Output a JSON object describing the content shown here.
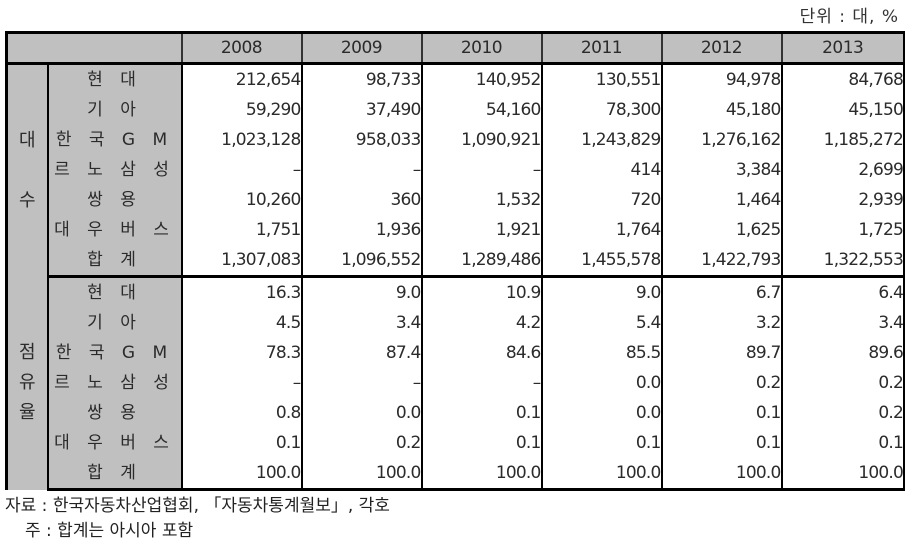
{
  "unit_label": "단위 : 대, %",
  "header": {
    "corner": "",
    "years": [
      "2008",
      "2009",
      "2010",
      "2011",
      "2012",
      "2013"
    ]
  },
  "sections": [
    {
      "group_label": "대 수",
      "group_chars": [
        "대",
        "수"
      ],
      "rows": [
        {
          "label": "현 대",
          "values": [
            "212,654",
            "98,733",
            "140,952",
            "130,551",
            "94,978",
            "84,768"
          ]
        },
        {
          "label": "기 아",
          "values": [
            "59,290",
            "37,490",
            "54,160",
            "78,300",
            "45,180",
            "45,150"
          ]
        },
        {
          "label": "한 국 G M",
          "values": [
            "1,023,128",
            "958,033",
            "1,090,921",
            "1,243,829",
            "1,276,162",
            "1,185,272"
          ]
        },
        {
          "label": "르 노 삼 성",
          "values": [
            "–",
            "–",
            "–",
            "414",
            "3,384",
            "2,699"
          ]
        },
        {
          "label": "쌍 용",
          "values": [
            "10,260",
            "360",
            "1,532",
            "720",
            "1,464",
            "2,939"
          ]
        },
        {
          "label": "대 우 버 스",
          "values": [
            "1,751",
            "1,936",
            "1,921",
            "1,764",
            "1,625",
            "1,725"
          ]
        },
        {
          "label": "합 계",
          "values": [
            "1,307,083",
            "1,096,552",
            "1,289,486",
            "1,455,578",
            "1,422,793",
            "1,322,553"
          ]
        }
      ]
    },
    {
      "group_label": "점 유 율",
      "group_chars": [
        "점",
        "유",
        "율"
      ],
      "rows": [
        {
          "label": "현 대",
          "values": [
            "16.3",
            "9.0",
            "10.9",
            "9.0",
            "6.7",
            "6.4"
          ]
        },
        {
          "label": "기 아",
          "values": [
            "4.5",
            "3.4",
            "4.2",
            "5.4",
            "3.2",
            "3.4"
          ]
        },
        {
          "label": "한 국 G M",
          "values": [
            "78.3",
            "87.4",
            "84.6",
            "85.5",
            "89.7",
            "89.6"
          ]
        },
        {
          "label": "르 노 삼 성",
          "values": [
            "–",
            "–",
            "–",
            "0.0",
            "0.2",
            "0.2"
          ]
        },
        {
          "label": "쌍 용",
          "values": [
            "0.8",
            "0.0",
            "0.1",
            "0.0",
            "0.1",
            "0.2"
          ]
        },
        {
          "label": "대 우 버 스",
          "values": [
            "0.1",
            "0.2",
            "0.1",
            "0.1",
            "0.1",
            "0.1"
          ]
        },
        {
          "label": "합 계",
          "values": [
            "100.0",
            "100.0",
            "100.0",
            "100.0",
            "100.0",
            "100.0"
          ]
        }
      ]
    }
  ],
  "notes": {
    "source": "자료 : 한국자동차산업협회, 「자동차통계월보」, 각호",
    "note": "주 : 합계는 아시아 포함"
  },
  "colors": {
    "header_bg": "#c0c0c0",
    "border": "#000000",
    "text": "#2b2b2b"
  }
}
